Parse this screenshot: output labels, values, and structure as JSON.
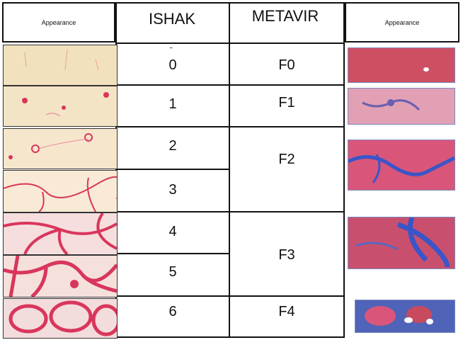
{
  "table": {
    "headers": {
      "appearance_left": "Appearance",
      "ishak": "ISHAK",
      "metavir": "METAVIR",
      "appearance_right": "Appearance"
    },
    "ishak_scores": [
      "0",
      "1",
      "2",
      "3",
      "4",
      "5",
      "6"
    ],
    "metavir_stages": [
      "F0",
      "F1",
      "F2",
      "F3",
      "F4"
    ]
  },
  "colors": {
    "line": "#111111",
    "sirius_red": "#d9365c",
    "tissue_background": "#f3e6c8",
    "trichrome_red": "#c84a5e",
    "trichrome_blue": "#3a55c8"
  }
}
